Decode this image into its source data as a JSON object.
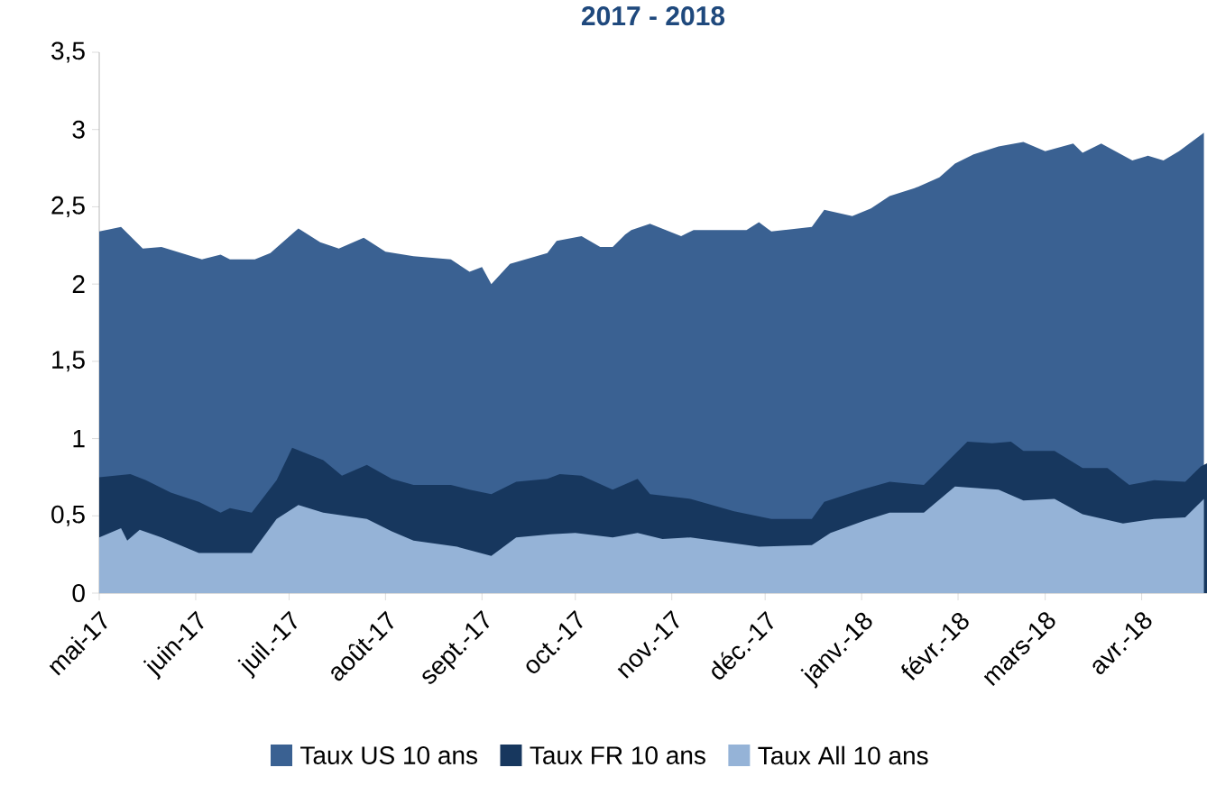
{
  "chart_data": {
    "type": "area",
    "title": "2017 - 2018",
    "xlim": [
      "2017-05-01",
      "2018-04-22"
    ],
    "xticks": [
      {
        "value": "2017-05-01",
        "label": "mai-17"
      },
      {
        "value": "2017-06-01",
        "label": "juin-17"
      },
      {
        "value": "2017-07-01",
        "label": "juil.-17"
      },
      {
        "value": "2017-08-01",
        "label": "août-17"
      },
      {
        "value": "2017-09-01",
        "label": "sept.-17"
      },
      {
        "value": "2017-10-01",
        "label": "oct.-17"
      },
      {
        "value": "2017-11-01",
        "label": "nov.-17"
      },
      {
        "value": "2017-12-01",
        "label": "déc.-17"
      },
      {
        "value": "2018-01-01",
        "label": "janv.-18"
      },
      {
        "value": "2018-02-01",
        "label": "févr.-18"
      },
      {
        "value": "2018-03-01",
        "label": "mars-18"
      },
      {
        "value": "2018-04-01",
        "label": "avr.-18"
      }
    ],
    "ylim": [
      0,
      3.5
    ],
    "yticks": [
      0,
      {
        "value": 0.5,
        "label": "0,5"
      },
      1,
      {
        "value": 1.5,
        "label": "1,5"
      },
      2,
      {
        "value": 2.5,
        "label": "2,5"
      },
      3,
      {
        "value": 3.5,
        "label": "3,5"
      }
    ],
    "grid": false,
    "legend": "bottom",
    "series": [
      {
        "name": "Taux US 10 ans",
        "color": "#3a6192",
        "x": [
          "2017-05-01",
          "2017-05-08",
          "2017-05-15",
          "2017-05-21",
          "2017-06-03",
          "2017-06-09",
          "2017-06-12",
          "2017-06-20",
          "2017-06-25",
          "2017-07-04",
          "2017-07-11",
          "2017-07-17",
          "2017-07-25",
          "2017-08-01",
          "2017-08-10",
          "2017-08-22",
          "2017-08-28",
          "2017-09-01",
          "2017-09-04",
          "2017-09-10",
          "2017-09-22",
          "2017-09-25",
          "2017-10-03",
          "2017-10-09",
          "2017-10-13",
          "2017-10-17",
          "2017-10-19",
          "2017-10-25",
          "2017-11-04",
          "2017-11-08",
          "2017-11-25",
          "2017-11-29",
          "2017-12-03",
          "2017-12-16",
          "2017-12-20",
          "2017-12-29",
          "2018-01-04",
          "2018-01-10",
          "2018-01-18",
          "2018-01-26",
          "2018-01-31",
          "2018-02-06",
          "2018-02-14",
          "2018-02-22",
          "2018-03-01",
          "2018-03-10",
          "2018-03-13",
          "2018-03-19",
          "2018-03-29",
          "2018-04-03",
          "2018-04-08",
          "2018-04-13",
          "2018-04-21"
        ],
        "values": [
          2.34,
          2.37,
          2.23,
          2.24,
          2.16,
          2.19,
          2.16,
          2.16,
          2.2,
          2.36,
          2.27,
          2.23,
          2.3,
          2.21,
          2.18,
          2.16,
          2.08,
          2.11,
          2.0,
          2.13,
          2.2,
          2.28,
          2.31,
          2.24,
          2.24,
          2.32,
          2.35,
          2.39,
          2.31,
          2.35,
          2.35,
          2.4,
          2.34,
          2.37,
          2.48,
          2.44,
          2.49,
          2.57,
          2.62,
          2.69,
          2.78,
          2.84,
          2.89,
          2.92,
          2.86,
          2.91,
          2.85,
          2.91,
          2.8,
          2.83,
          2.8,
          2.86,
          2.98
        ]
      },
      {
        "name": "Taux FR 10 ans",
        "color": "#17375e",
        "x": [
          "2017-05-01",
          "2017-05-11",
          "2017-05-16",
          "2017-05-24",
          "2017-06-02",
          "2017-06-09",
          "2017-06-12",
          "2017-06-19",
          "2017-06-27",
          "2017-07-02",
          "2017-07-12",
          "2017-07-18",
          "2017-07-26",
          "2017-08-03",
          "2017-08-10",
          "2017-08-22",
          "2017-08-28",
          "2017-09-04",
          "2017-09-12",
          "2017-09-22",
          "2017-09-26",
          "2017-10-03",
          "2017-10-13",
          "2017-10-21",
          "2017-10-25",
          "2017-11-07",
          "2017-11-21",
          "2017-12-03",
          "2017-12-16",
          "2017-12-20",
          "2018-01-01",
          "2018-01-10",
          "2018-01-21",
          "2018-01-27",
          "2018-02-04",
          "2018-02-12",
          "2018-02-18",
          "2018-02-22",
          "2018-03-04",
          "2018-03-13",
          "2018-03-21",
          "2018-03-28",
          "2018-04-05",
          "2018-04-15",
          "2018-04-20",
          "2018-04-22"
        ],
        "values": [
          0.75,
          0.77,
          0.73,
          0.65,
          0.59,
          0.52,
          0.55,
          0.52,
          0.73,
          0.94,
          0.86,
          0.76,
          0.83,
          0.74,
          0.7,
          0.7,
          0.67,
          0.64,
          0.72,
          0.74,
          0.77,
          0.76,
          0.67,
          0.74,
          0.64,
          0.61,
          0.53,
          0.48,
          0.48,
          0.59,
          0.67,
          0.72,
          0.7,
          0.82,
          0.98,
          0.97,
          0.98,
          0.92,
          0.92,
          0.81,
          0.81,
          0.7,
          0.73,
          0.72,
          0.82,
          0.84
        ]
      },
      {
        "name": "Taux All 10 ans",
        "color": "#95b3d7",
        "x": [
          "2017-05-01",
          "2017-05-08",
          "2017-05-10",
          "2017-05-14",
          "2017-05-21",
          "2017-06-02",
          "2017-06-09",
          "2017-06-19",
          "2017-06-27",
          "2017-07-04",
          "2017-07-12",
          "2017-07-26",
          "2017-08-03",
          "2017-08-10",
          "2017-08-24",
          "2017-09-04",
          "2017-09-12",
          "2017-09-23",
          "2017-10-01",
          "2017-10-13",
          "2017-10-21",
          "2017-10-29",
          "2017-11-07",
          "2017-11-29",
          "2017-12-16",
          "2017-12-22",
          "2018-01-02",
          "2018-01-10",
          "2018-01-21",
          "2018-01-31",
          "2018-02-14",
          "2018-02-22",
          "2018-03-04",
          "2018-03-13",
          "2018-03-26",
          "2018-04-05",
          "2018-04-15",
          "2018-04-21"
        ],
        "values": [
          0.36,
          0.42,
          0.34,
          0.41,
          0.36,
          0.26,
          0.26,
          0.26,
          0.48,
          0.57,
          0.52,
          0.48,
          0.4,
          0.34,
          0.3,
          0.24,
          0.36,
          0.38,
          0.39,
          0.36,
          0.39,
          0.35,
          0.36,
          0.3,
          0.31,
          0.39,
          0.47,
          0.52,
          0.52,
          0.69,
          0.67,
          0.6,
          0.61,
          0.51,
          0.45,
          0.48,
          0.49,
          0.61
        ]
      }
    ]
  }
}
